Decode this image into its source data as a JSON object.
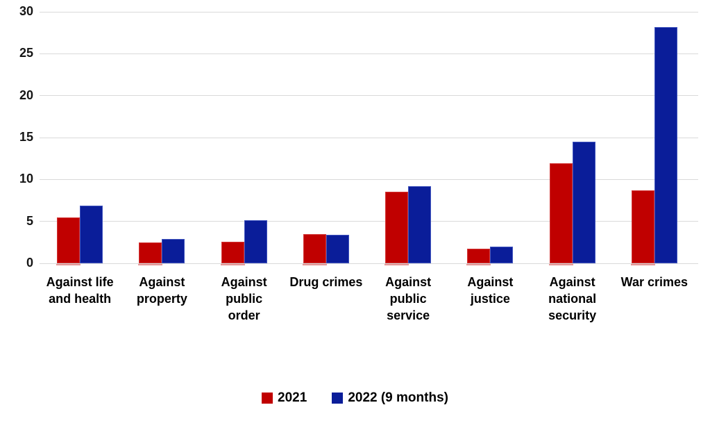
{
  "chart_data": {
    "type": "bar",
    "title": "",
    "xlabel": "",
    "ylabel": "",
    "categories": [
      "Against life\nand health",
      "Against\nproperty",
      "Against\npublic\norder",
      "Drug crimes",
      "Against\npublic\nservice",
      "Against\njustice",
      "Against\nnational\nsecurity",
      "War crimes"
    ],
    "series": [
      {
        "name": "2021",
        "color": "#C00000",
        "values": [
          5.5,
          2.5,
          2.6,
          3.5,
          8.5,
          1.7,
          11.9,
          8.7
        ]
      },
      {
        "name": "2022 (9 months)",
        "color": "#0A1D99",
        "values": [
          6.9,
          2.9,
          5.1,
          3.4,
          9.2,
          2.0,
          14.5,
          28.2
        ]
      }
    ],
    "y_ticks": [
      0,
      5,
      10,
      15,
      20,
      25,
      30
    ],
    "ylim": [
      0,
      30
    ],
    "grid": true,
    "legend_position": "bottom",
    "colors": {
      "grid": "#D9D9D9",
      "tick_text": "#151515",
      "label_text": "#000000"
    }
  }
}
